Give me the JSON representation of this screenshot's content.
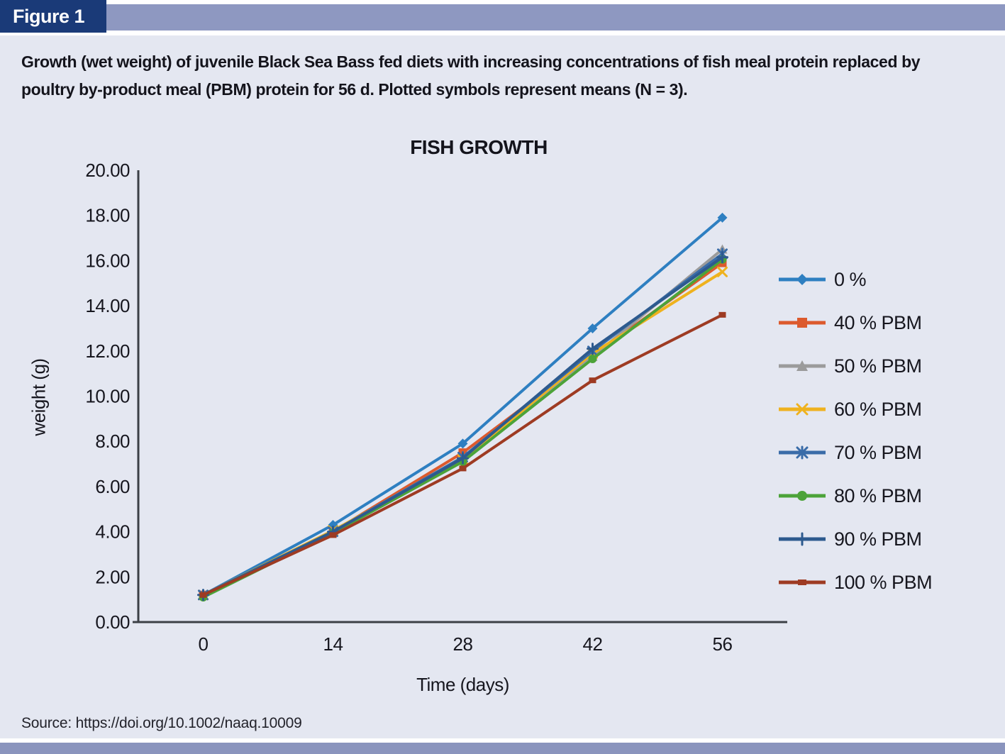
{
  "header": {
    "figure_label": "Figure 1"
  },
  "caption": "Growth (wet weight) of juvenile Black Sea Bass fed diets with increasing concentrations of fish meal protein replaced by poultry by-product meal (PBM) protein for 56 d. Plotted symbols represent means (N = 3).",
  "source": "Source: https://doi.org/10.1002/naaq.10009",
  "colors": {
    "figure_box": "#1A3A78",
    "top_bar": "#8E98C1",
    "bottom_bar": "#8A94BD",
    "figure_background": "#E4E7F1",
    "axis": "#3C4046",
    "text": "#15151D"
  },
  "chart_data": {
    "type": "line",
    "title": "FISH GROWTH",
    "xlabel": "Time (days)",
    "ylabel": "weight (g)",
    "x": [
      0,
      14,
      28,
      42,
      56
    ],
    "ylim": [
      0,
      20
    ],
    "ytick_step": 2,
    "ytick_decimals": 2,
    "grid": false,
    "legend_position": "right",
    "series": [
      {
        "name": "0 %",
        "color": "#2E7FC1",
        "marker": "diamond",
        "values": [
          1.2,
          4.3,
          7.9,
          13.0,
          17.9
        ]
      },
      {
        "name": "40 % PBM",
        "color": "#DC5A2D",
        "marker": "square",
        "values": [
          1.2,
          4.0,
          7.5,
          11.8,
          15.9
        ]
      },
      {
        "name": "50 % PBM",
        "color": "#9B9B9B",
        "marker": "triangle",
        "values": [
          1.2,
          4.0,
          7.3,
          11.75,
          16.5
        ]
      },
      {
        "name": "60 % PBM",
        "color": "#EFB21E",
        "marker": "x",
        "values": [
          1.2,
          4.05,
          7.2,
          11.9,
          15.5
        ]
      },
      {
        "name": "70 % PBM",
        "color": "#3A6CA8",
        "marker": "star",
        "values": [
          1.2,
          4.0,
          7.3,
          12.0,
          16.3
        ]
      },
      {
        "name": "80 % PBM",
        "color": "#4CA339",
        "marker": "circle",
        "values": [
          1.1,
          3.95,
          7.1,
          11.65,
          16.05
        ]
      },
      {
        "name": "90 % PBM",
        "color": "#2D5A8E",
        "marker": "plus",
        "values": [
          1.2,
          4.0,
          7.25,
          12.1,
          16.15
        ]
      },
      {
        "name": "100 % PBM",
        "color": "#9E3B23",
        "marker": "dash",
        "values": [
          1.2,
          3.85,
          6.8,
          10.7,
          13.6
        ]
      }
    ]
  }
}
